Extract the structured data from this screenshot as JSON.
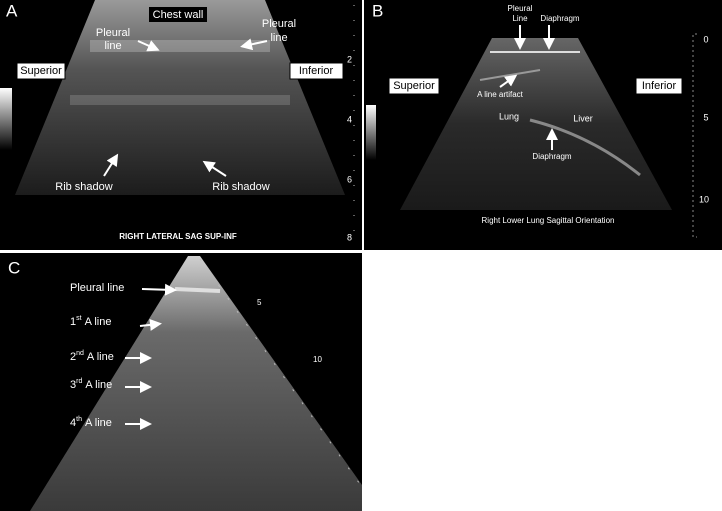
{
  "panel_a": {
    "label": "A",
    "chest_wall": "Chest wall",
    "pleural_line_left": [
      "Pleural",
      "line"
    ],
    "pleural_line_right": [
      "Pleural",
      "line"
    ],
    "superior": "Superior",
    "inferior": "Inferior",
    "rib_shadow_left": "Rib shadow",
    "rib_shadow_right": "Rib shadow",
    "caption": "RIGHT LATERAL SAG SUP-INF",
    "depth_scale": [
      2,
      4,
      6,
      8
    ]
  },
  "panel_b": {
    "label": "B",
    "pleural_line": [
      "Pleural",
      "Line"
    ],
    "diaphragm_top": "Diaphragm",
    "a_line_artifact": "A line artifact",
    "superior": "Superior",
    "inferior": "Inferior",
    "lung": "Lung",
    "liver": "Liver",
    "diaphragm": "Diaphragm",
    "caption": "Right Lower Lung Sagittal Orientation",
    "depth_scale": [
      0,
      5,
      10
    ]
  },
  "panel_c": {
    "label": "C",
    "pleural_line": "Pleural line",
    "a_lines": [
      {
        "ordinal": "1",
        "suffix": "st",
        "text": "A line"
      },
      {
        "ordinal": "2",
        "suffix": "nd",
        "text": "A line"
      },
      {
        "ordinal": "3",
        "suffix": "rd",
        "text": "A line"
      },
      {
        "ordinal": "4",
        "suffix": "th",
        "text": "A line"
      }
    ],
    "depth_scale": [
      5,
      10
    ]
  }
}
